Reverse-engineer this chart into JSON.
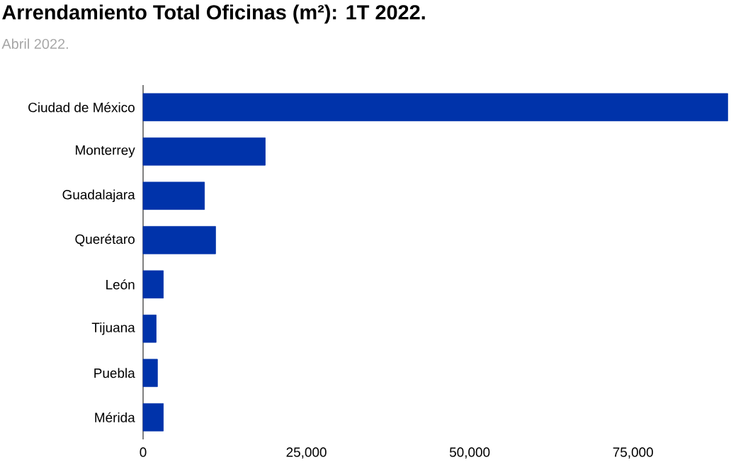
{
  "chart_data": {
    "type": "bar",
    "orientation": "horizontal",
    "title": "Arrendamiento Total Oficinas (m²): 1T 2022.",
    "annotations": [
      "Abril 2022."
    ],
    "categories": [
      "Ciudad de México",
      "Monterrey",
      "Guadalajara",
      "Querétaro",
      "León",
      "Tijuana",
      "Puebla",
      "Mérida"
    ],
    "values": [
      89500,
      18700,
      9400,
      11100,
      3100,
      2000,
      2200,
      3100
    ],
    "color": "#0033aa",
    "xlim": [
      0,
      90000
    ],
    "xticks": [
      0,
      {
        "value": 25000,
        "label": "25,000"
      },
      {
        "value": 50000,
        "label": "50,000"
      },
      {
        "value": 75000,
        "label": "75,000"
      }
    ]
  }
}
